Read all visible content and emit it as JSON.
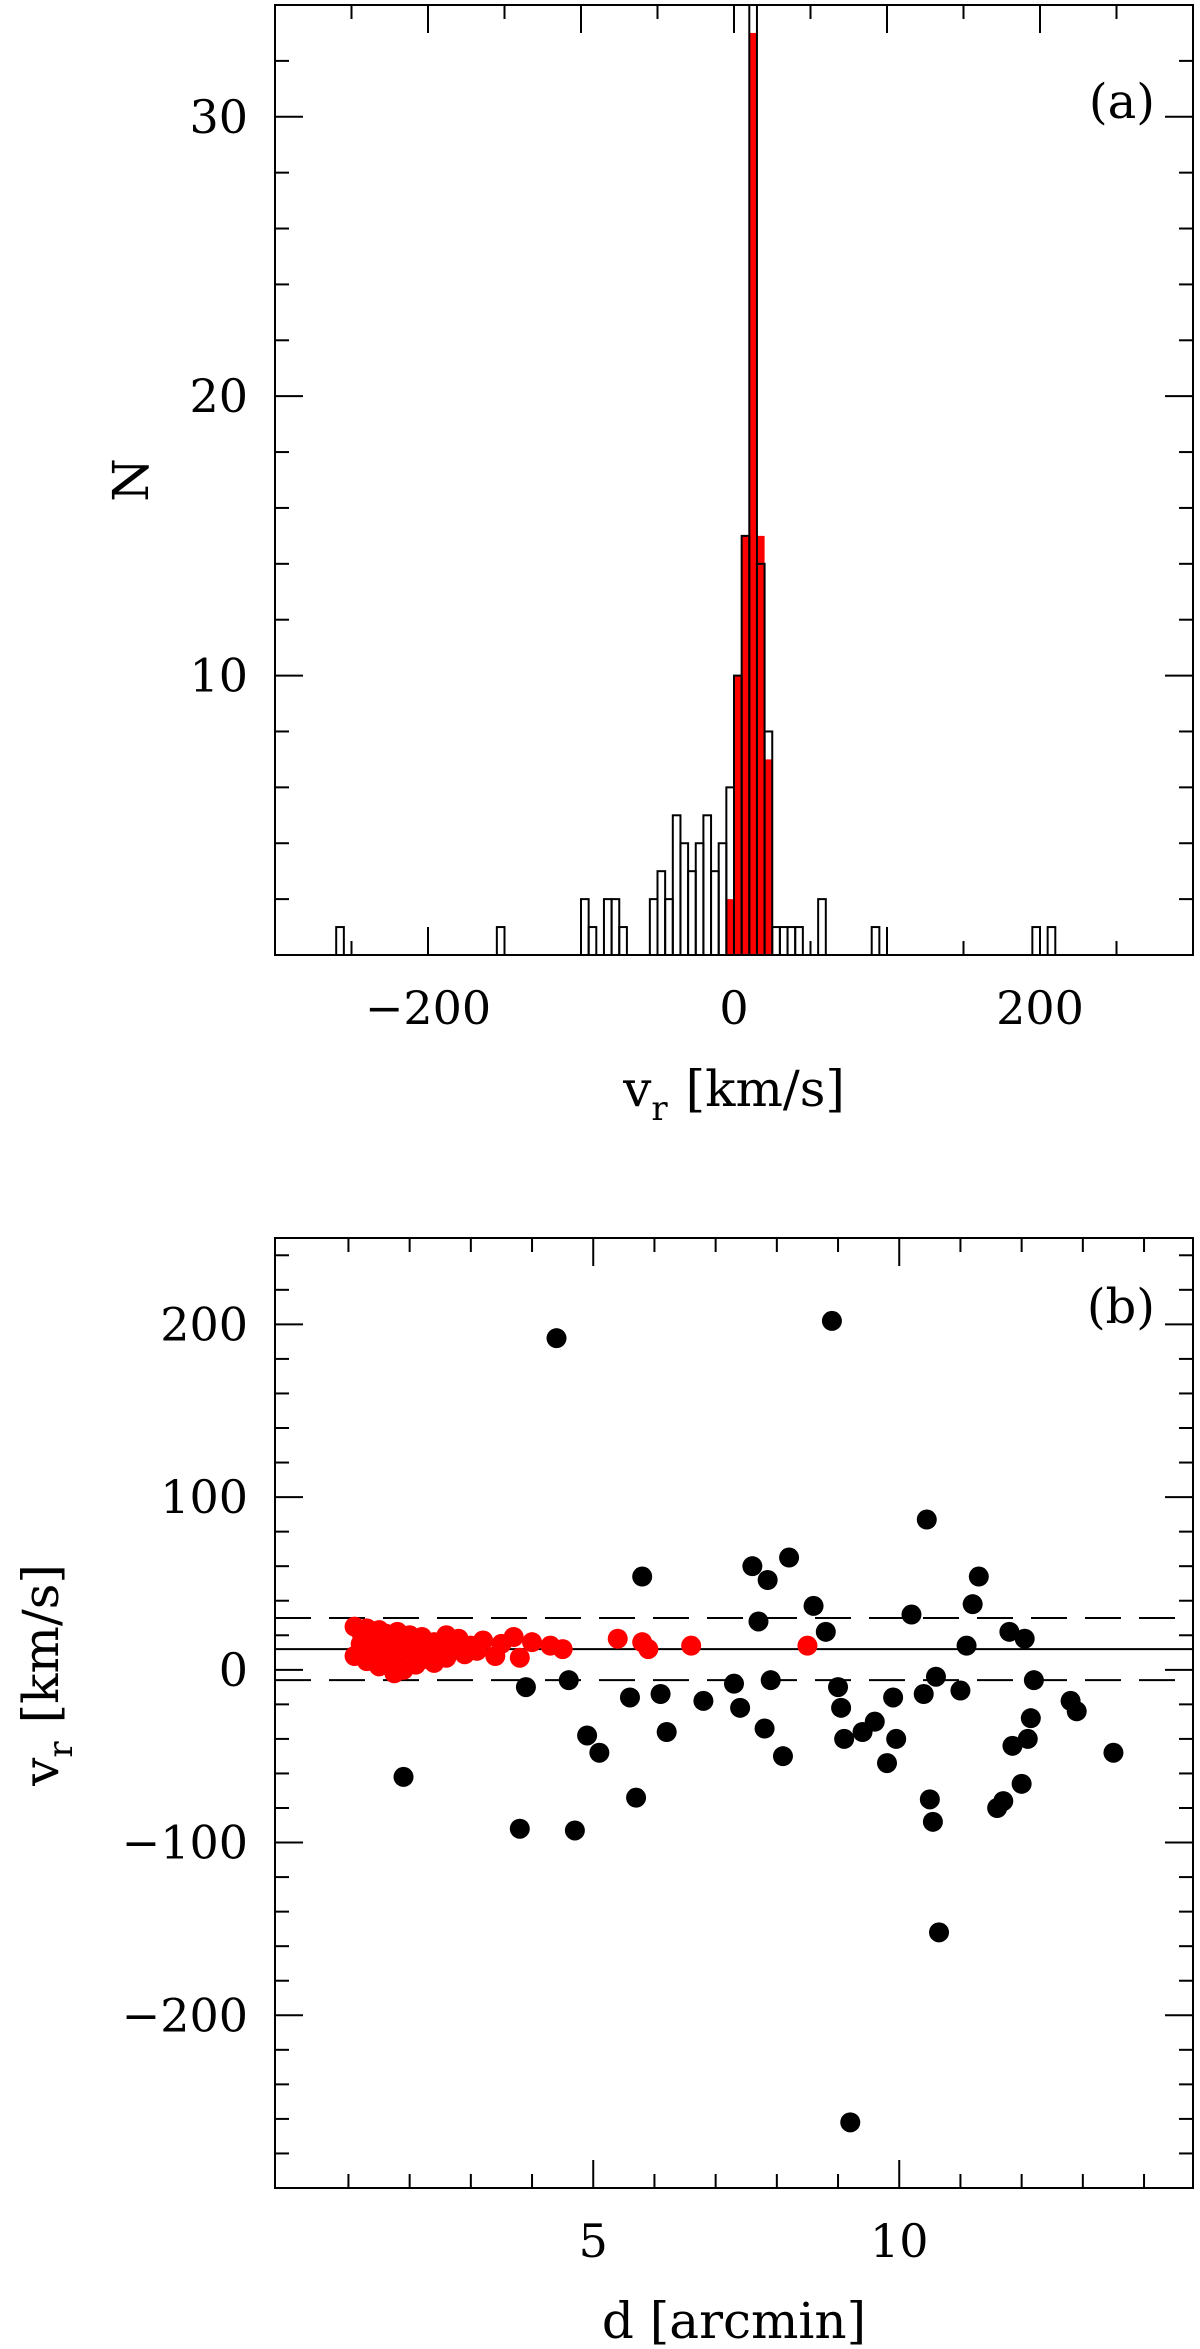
{
  "colors": {
    "member": "#ff0000",
    "nonmember": "#000000",
    "axis": "#000000",
    "hist_outline": "#000000"
  },
  "chart_data": [
    {
      "panel": "(a)",
      "type": "bar",
      "xlabel_main": "v",
      "xlabel_sub": "r",
      "xlabel_units": "[km/s]",
      "ylabel": "N",
      "xlim": [
        -300,
        300
      ],
      "ylim": [
        0,
        34
      ],
      "xticks": [
        -200,
        0,
        200
      ],
      "xtick_labels": [
        "−200",
        "0",
        "200"
      ],
      "yticks": [
        10,
        20,
        30
      ],
      "ytick_labels": [
        "10",
        "20",
        "30"
      ],
      "bin_width": 5,
      "series": [
        {
          "kind": "outline",
          "bins": [
            [
              -260,
              1
            ],
            [
              -155,
              1
            ],
            [
              -100,
              2
            ],
            [
              -95,
              1
            ],
            [
              -85,
              2
            ],
            [
              -80,
              2
            ],
            [
              -75,
              1
            ],
            [
              -55,
              2
            ],
            [
              -50,
              3
            ],
            [
              -45,
              2
            ],
            [
              -40,
              5
            ],
            [
              -35,
              4
            ],
            [
              -30,
              3
            ],
            [
              -25,
              4
            ],
            [
              -20,
              5
            ],
            [
              -15,
              3
            ],
            [
              -10,
              4
            ],
            [
              -5,
              6
            ],
            [
              0,
              10
            ],
            [
              5,
              15
            ],
            [
              10,
              34
            ],
            [
              15,
              14
            ],
            [
              20,
              8
            ],
            [
              25,
              1
            ],
            [
              30,
              1
            ],
            [
              35,
              1
            ],
            [
              40,
              1
            ],
            [
              55,
              2
            ],
            [
              90,
              1
            ],
            [
              195,
              1
            ],
            [
              205,
              1
            ]
          ]
        },
        {
          "kind": "filled",
          "bins": [
            [
              -5,
              2
            ],
            [
              0,
              10
            ],
            [
              5,
              15
            ],
            [
              10,
              33
            ],
            [
              15,
              15
            ],
            [
              20,
              7
            ]
          ]
        }
      ]
    },
    {
      "panel": "(b)",
      "type": "scatter",
      "xlabel": "d [arcmin]",
      "ylabel_main": "v",
      "ylabel_sub": "r",
      "ylabel_units": "[km/s]",
      "xlim": [
        -0.2,
        14.8
      ],
      "ylim": [
        -300,
        250
      ],
      "xticks": [
        5,
        10
      ],
      "xtick_labels": [
        "5",
        "10"
      ],
      "yticks": [
        -200,
        -100,
        0,
        100,
        200
      ],
      "ytick_labels": [
        "−200",
        "−100",
        "0",
        "100",
        "200"
      ],
      "hlines": [
        {
          "y": 12,
          "style": "solid"
        },
        {
          "y": 30,
          "style": "dashed"
        },
        {
          "y": -6,
          "style": "dashed"
        }
      ],
      "series": [
        {
          "name": "",
          "points": [
            [
              1.1,
              25
            ],
            [
              1.2,
              22
            ],
            [
              1.3,
              24
            ],
            [
              1.4,
              20
            ],
            [
              1.5,
              23
            ],
            [
              1.6,
              21
            ],
            [
              1.7,
              18
            ],
            [
              1.8,
              22
            ],
            [
              1.9,
              17
            ],
            [
              2.0,
              20
            ],
            [
              2.1,
              15
            ],
            [
              2.2,
              19
            ],
            [
              2.4,
              16
            ],
            [
              2.5,
              12
            ],
            [
              2.6,
              20
            ],
            [
              2.8,
              18
            ],
            [
              3.0,
              14
            ],
            [
              3.2,
              17
            ],
            [
              3.5,
              15
            ],
            [
              3.7,
              19
            ],
            [
              4.0,
              16
            ],
            [
              4.3,
              14
            ],
            [
              4.5,
              12
            ],
            [
              1.2,
              15
            ],
            [
              1.4,
              10
            ],
            [
              1.6,
              14
            ],
            [
              1.8,
              8
            ],
            [
              2.0,
              12
            ],
            [
              2.2,
              6
            ],
            [
              2.3,
              10
            ],
            [
              2.5,
              8
            ],
            [
              2.7,
              12
            ],
            [
              2.9,
              9
            ],
            [
              3.1,
              11
            ],
            [
              3.4,
              8
            ],
            [
              3.8,
              7
            ],
            [
              1.3,
              5
            ],
            [
              1.5,
              2
            ],
            [
              1.7,
              6
            ],
            [
              1.9,
              0
            ],
            [
              2.1,
              3
            ],
            [
              2.4,
              4
            ],
            [
              1.1,
              8
            ],
            [
              1.9,
              11
            ],
            [
              2.3,
              13
            ],
            [
              2.6,
              7
            ],
            [
              5.4,
              18
            ],
            [
              5.8,
              16
            ],
            [
              5.9,
              12
            ],
            [
              6.6,
              14
            ],
            [
              8.5,
              14
            ],
            [
              1.75,
              -2
            ]
          ]
        },
        {
          "name": "",
          "points": [
            [
              1.9,
              -62
            ],
            [
              3.8,
              -92
            ],
            [
              3.9,
              -10
            ],
            [
              4.4,
              192
            ],
            [
              4.6,
              -6
            ],
            [
              4.7,
              -93
            ],
            [
              4.9,
              -38
            ],
            [
              5.1,
              -48
            ],
            [
              5.6,
              -16
            ],
            [
              5.7,
              -74
            ],
            [
              5.8,
              54
            ],
            [
              6.1,
              -14
            ],
            [
              6.2,
              -36
            ],
            [
              6.8,
              -18
            ],
            [
              7.3,
              -8
            ],
            [
              7.4,
              -22
            ],
            [
              7.6,
              60
            ],
            [
              7.7,
              28
            ],
            [
              7.8,
              -34
            ],
            [
              7.85,
              52
            ],
            [
              7.9,
              -6
            ],
            [
              8.1,
              -50
            ],
            [
              8.2,
              65
            ],
            [
              8.6,
              37
            ],
            [
              8.8,
              22
            ],
            [
              8.9,
              202
            ],
            [
              9.0,
              -10
            ],
            [
              9.05,
              -22
            ],
            [
              9.1,
              -40
            ],
            [
              9.2,
              -262
            ],
            [
              9.4,
              -36
            ],
            [
              9.6,
              -30
            ],
            [
              9.8,
              -54
            ],
            [
              9.9,
              -16
            ],
            [
              9.95,
              -40
            ],
            [
              10.2,
              32
            ],
            [
              10.4,
              -14
            ],
            [
              10.45,
              87
            ],
            [
              10.5,
              -75
            ],
            [
              10.55,
              -88
            ],
            [
              10.6,
              -4
            ],
            [
              10.65,
              -152
            ],
            [
              11.0,
              -12
            ],
            [
              11.1,
              14
            ],
            [
              11.2,
              38
            ],
            [
              11.3,
              54
            ],
            [
              11.6,
              -80
            ],
            [
              11.7,
              -76
            ],
            [
              11.8,
              22
            ],
            [
              11.85,
              -44
            ],
            [
              12.0,
              -66
            ],
            [
              12.05,
              18
            ],
            [
              12.1,
              -40
            ],
            [
              12.15,
              -28
            ],
            [
              12.2,
              -6
            ],
            [
              12.8,
              -18
            ],
            [
              12.9,
              -24
            ],
            [
              13.5,
              -48
            ]
          ]
        }
      ]
    }
  ]
}
